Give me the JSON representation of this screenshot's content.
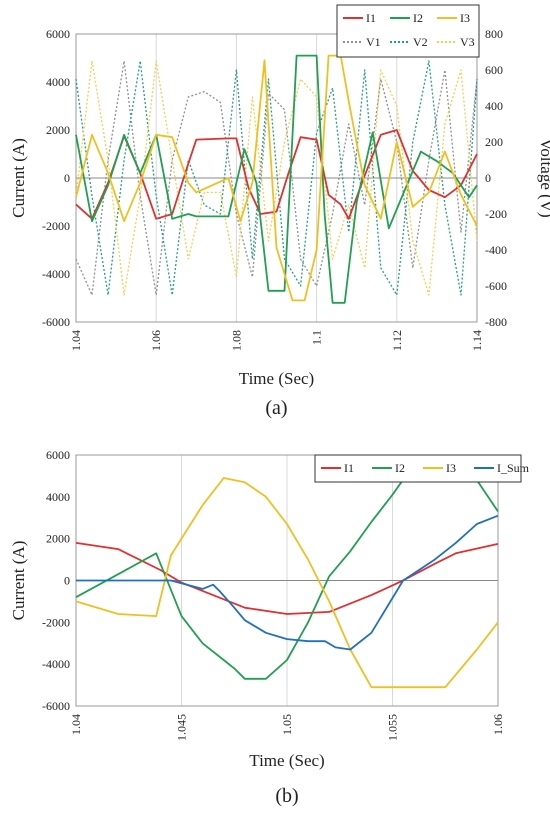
{
  "chart_data": [
    {
      "type": "line",
      "panel_label": "(a)",
      "xlabel": "Time (Sec)",
      "ylabel": "Current (A)",
      "y2label": "Voltage (V)",
      "xlim": [
        1.04,
        1.14
      ],
      "ylim": [
        -6000,
        6000
      ],
      "y2lim": [
        -800,
        800
      ],
      "xticks": [
        "1.04",
        "1.06",
        "1.08",
        "1.1",
        "1.12",
        "1.14"
      ],
      "yticks": [
        "-6000",
        "-4000",
        "-2000",
        "0",
        "2000",
        "4000",
        "6000"
      ],
      "y2ticks": [
        "-800",
        "-600",
        "-400",
        "-200",
        "0",
        "200",
        "400",
        "600",
        "800"
      ],
      "grid": "vertical",
      "legend_position": "top-right",
      "series": [
        {
          "name": "I1",
          "color": "#e03030",
          "style": "solid",
          "axis": "left",
          "x": [
            1.04,
            1.044,
            1.048,
            1.052,
            1.056,
            1.06,
            1.064,
            1.068,
            1.07,
            1.078,
            1.08,
            1.083,
            1.086,
            1.09,
            1.093,
            1.096,
            1.1,
            1.103,
            1.106,
            1.108,
            1.112,
            1.116,
            1.12,
            1.124,
            1.128,
            1.132,
            1.136,
            1.14
          ],
          "y": [
            -1100,
            -1700,
            -200,
            1750,
            200,
            -1700,
            -1500,
            600,
            1600,
            1650,
            1650,
            -400,
            -1500,
            -1400,
            200,
            1700,
            1600,
            -700,
            -1100,
            -1700,
            100,
            1800,
            2000,
            300,
            -500,
            -800,
            -300,
            1000
          ]
        },
        {
          "name": "I2",
          "color": "#20a050",
          "style": "solid",
          "axis": "left",
          "x": [
            1.04,
            1.044,
            1.048,
            1.052,
            1.056,
            1.06,
            1.064,
            1.068,
            1.07,
            1.078,
            1.082,
            1.085,
            1.088,
            1.092,
            1.095,
            1.1,
            1.102,
            1.104,
            1.107,
            1.11,
            1.114,
            1.118,
            1.122,
            1.126,
            1.13,
            1.134,
            1.138,
            1.14
          ],
          "y": [
            1800,
            -1800,
            -300,
            1800,
            200,
            1800,
            -1700,
            -1500,
            -1600,
            -1600,
            1200,
            -200,
            -4700,
            -4700,
            5100,
            5100,
            -1500,
            -5200,
            -5200,
            -1000,
            1900,
            -2100,
            -500,
            1100,
            700,
            200,
            -800,
            -300
          ]
        },
        {
          "name": "I3",
          "color": "#f0c020",
          "style": "solid",
          "axis": "left",
          "x": [
            1.04,
            1.044,
            1.048,
            1.052,
            1.056,
            1.06,
            1.064,
            1.068,
            1.07,
            1.078,
            1.081,
            1.084,
            1.087,
            1.09,
            1.094,
            1.097,
            1.1,
            1.103,
            1.106,
            1.108,
            1.112,
            1.116,
            1.12,
            1.124,
            1.128,
            1.132,
            1.136,
            1.14
          ],
          "y": [
            -800,
            1800,
            200,
            -1800,
            -200,
            1800,
            1700,
            -200,
            -600,
            0,
            -1800,
            -200,
            4900,
            -2900,
            -5100,
            -5100,
            -3000,
            5100,
            5100,
            3200,
            -300,
            -1700,
            1500,
            -1200,
            -600,
            1100,
            -700,
            -2000
          ]
        },
        {
          "name": "V1",
          "color": "#909090",
          "style": "dotted",
          "axis": "right",
          "x": [
            1.04,
            1.044,
            1.048,
            1.052,
            1.056,
            1.06,
            1.064,
            1.068,
            1.072,
            1.076,
            1.08,
            1.084,
            1.088,
            1.092,
            1.096,
            1.1,
            1.104,
            1.108,
            1.112,
            1.116,
            1.12,
            1.124,
            1.128,
            1.132,
            1.136,
            1.14
          ],
          "y": [
            -450,
            -650,
            100,
            650,
            -100,
            -650,
            100,
            450,
            480,
            420,
            -200,
            -550,
            470,
            380,
            -450,
            -600,
            -200,
            300,
            -150,
            550,
            200,
            -500,
            100,
            600,
            -300,
            550
          ]
        },
        {
          "name": "V2",
          "color": "#20a080",
          "style": "dotted",
          "axis": "right",
          "x": [
            1.04,
            1.044,
            1.048,
            1.052,
            1.056,
            1.06,
            1.064,
            1.068,
            1.072,
            1.076,
            1.08,
            1.084,
            1.088,
            1.092,
            1.096,
            1.1,
            1.104,
            1.108,
            1.112,
            1.116,
            1.12,
            1.124,
            1.128,
            1.132,
            1.136,
            1.14
          ],
          "y": [
            550,
            -100,
            -650,
            100,
            650,
            -100,
            -650,
            100,
            -150,
            -200,
            600,
            -450,
            550,
            -450,
            -600,
            250,
            500,
            -300,
            600,
            -500,
            -650,
            200,
            650,
            -150,
            -650,
            550
          ]
        },
        {
          "name": "V3",
          "color": "#f0d050",
          "style": "dotted",
          "axis": "right",
          "x": [
            1.04,
            1.044,
            1.048,
            1.052,
            1.056,
            1.06,
            1.064,
            1.068,
            1.072,
            1.076,
            1.08,
            1.084,
            1.088,
            1.092,
            1.096,
            1.1,
            1.104,
            1.108,
            1.112,
            1.116,
            1.12,
            1.124,
            1.128,
            1.132,
            1.136,
            1.14
          ],
          "y": [
            -100,
            650,
            100,
            -650,
            -100,
            650,
            100,
            -450,
            -80,
            -80,
            -550,
            450,
            -350,
            200,
            550,
            450,
            -450,
            -150,
            -500,
            600,
            400,
            -350,
            -650,
            300,
            600,
            -350
          ]
        }
      ]
    },
    {
      "type": "line",
      "panel_label": "(b)",
      "xlabel": "Time (Sec)",
      "ylabel": "Current (A)",
      "xlim": [
        1.04,
        1.06
      ],
      "ylim": [
        -6000,
        6000
      ],
      "xticks": [
        "1.04",
        "1.045",
        "1.05",
        "1.055",
        "1.06"
      ],
      "yticks": [
        "-6000",
        "-4000",
        "-2000",
        "0",
        "2000",
        "4000",
        "6000"
      ],
      "grid": "vertical",
      "legend_position": "top-right",
      "series": [
        {
          "name": "I1",
          "color": "#e03030",
          "x": [
            1.04,
            1.042,
            1.044,
            1.045,
            1.047,
            1.048,
            1.05,
            1.052,
            1.054,
            1.0555,
            1.057,
            1.058,
            1.06
          ],
          "y": [
            1800,
            1500,
            500,
            -100,
            -900,
            -1300,
            -1600,
            -1500,
            -700,
            0,
            800,
            1300,
            1750
          ]
        },
        {
          "name": "I2",
          "color": "#20a050",
          "x": [
            1.04,
            1.042,
            1.0438,
            1.045,
            1.046,
            1.047,
            1.0475,
            1.048,
            1.049,
            1.05,
            1.051,
            1.052,
            1.053,
            1.054,
            1.055,
            1.0557,
            1.058,
            1.059,
            1.06
          ],
          "y": [
            -800,
            300,
            1300,
            -1700,
            -3000,
            -3800,
            -4200,
            -4700,
            -4700,
            -3800,
            -2000,
            200,
            1400,
            2800,
            4100,
            5100,
            5100,
            4800,
            3300
          ]
        },
        {
          "name": "I3",
          "color": "#f0c020",
          "x": [
            1.04,
            1.042,
            1.0438,
            1.0445,
            1.046,
            1.047,
            1.048,
            1.049,
            1.05,
            1.051,
            1.052,
            1.053,
            1.054,
            1.055,
            1.056,
            1.0575,
            1.059,
            1.06
          ],
          "y": [
            -1000,
            -1600,
            -1700,
            1200,
            3600,
            4900,
            4700,
            4000,
            2700,
            1000,
            -1000,
            -3300,
            -5100,
            -5100,
            -5100,
            -5100,
            -3300,
            -2000
          ]
        },
        {
          "name": "I_Sum",
          "color": "#2070c0",
          "x": [
            1.04,
            1.042,
            1.0445,
            1.046,
            1.0465,
            1.0468,
            1.0475,
            1.048,
            1.049,
            1.05,
            1.051,
            1.0518,
            1.0523,
            1.053,
            1.054,
            1.0555,
            1.057,
            1.058,
            1.059,
            1.06
          ],
          "y": [
            0,
            0,
            0,
            -400,
            -200,
            -500,
            -1300,
            -1900,
            -2500,
            -2800,
            -2900,
            -2900,
            -3200,
            -3300,
            -2500,
            0,
            1000,
            1800,
            2700,
            3100
          ]
        }
      ]
    }
  ]
}
